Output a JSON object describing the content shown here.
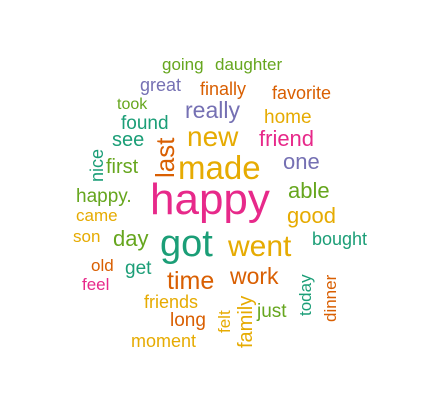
{
  "colors": {
    "green": "#1b9e77",
    "orange": "#d95f02",
    "purple": "#7570b3",
    "magenta": "#e7298a",
    "lime": "#66a61e",
    "gold": "#e6ab02"
  },
  "words": [
    {
      "text": "going",
      "color": "lime"
    },
    {
      "text": "daughter",
      "color": "lime"
    },
    {
      "text": "great",
      "color": "purple"
    },
    {
      "text": "finally",
      "color": "orange"
    },
    {
      "text": "favorite",
      "color": "orange"
    },
    {
      "text": "took",
      "color": "lime"
    },
    {
      "text": "really",
      "color": "purple"
    },
    {
      "text": "home",
      "color": "gold"
    },
    {
      "text": "found",
      "color": "green"
    },
    {
      "text": "see",
      "color": "green"
    },
    {
      "text": "new",
      "color": "gold"
    },
    {
      "text": "friend",
      "color": "magenta"
    },
    {
      "text": "last",
      "color": "orange"
    },
    {
      "text": "nice",
      "color": "green"
    },
    {
      "text": "first",
      "color": "lime"
    },
    {
      "text": "made",
      "color": "gold"
    },
    {
      "text": "one",
      "color": "purple"
    },
    {
      "text": "happy",
      "color": "magenta"
    },
    {
      "text": "happy.",
      "color": "lime"
    },
    {
      "text": "able",
      "color": "lime"
    },
    {
      "text": "came",
      "color": "gold"
    },
    {
      "text": "good",
      "color": "gold"
    },
    {
      "text": "son",
      "color": "gold"
    },
    {
      "text": "day",
      "color": "lime"
    },
    {
      "text": "got",
      "color": "green"
    },
    {
      "text": "went",
      "color": "gold"
    },
    {
      "text": "bought",
      "color": "green"
    },
    {
      "text": "old",
      "color": "orange"
    },
    {
      "text": "get",
      "color": "green"
    },
    {
      "text": "time",
      "color": "orange"
    },
    {
      "text": "work",
      "color": "orange"
    },
    {
      "text": "today",
      "color": "green"
    },
    {
      "text": "feel",
      "color": "magenta"
    },
    {
      "text": "dinner",
      "color": "orange"
    },
    {
      "text": "friends",
      "color": "gold"
    },
    {
      "text": "felt",
      "color": "gold"
    },
    {
      "text": "just",
      "color": "lime"
    },
    {
      "text": "long",
      "color": "orange"
    },
    {
      "text": "family",
      "color": "gold"
    },
    {
      "text": "moment",
      "color": "gold"
    }
  ]
}
